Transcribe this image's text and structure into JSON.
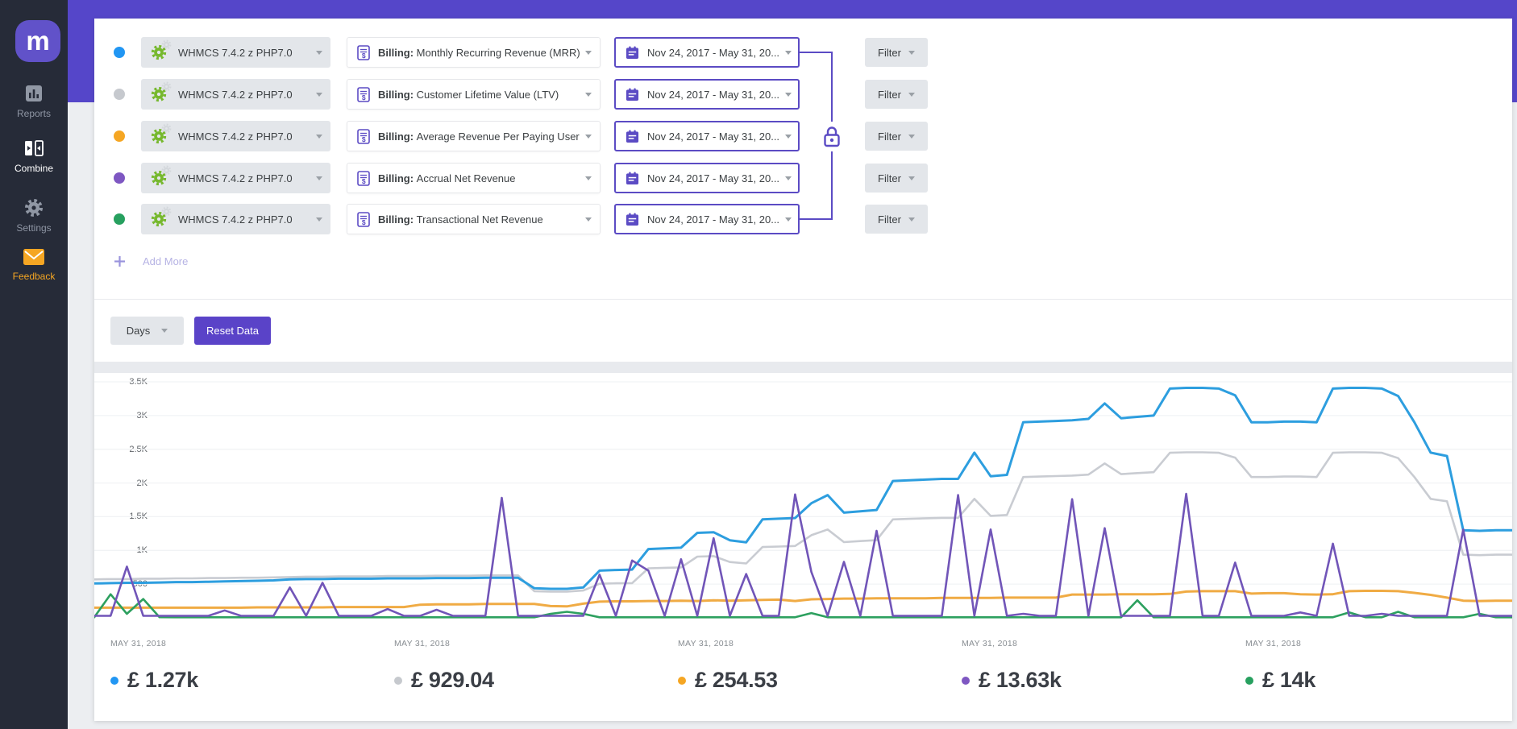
{
  "theme": {
    "accent": "#5b4bc4",
    "band": "#5546c9",
    "sidebar": "#262b38",
    "logo": "#6152c9",
    "reset": "#5a43c8",
    "control": "#e3e6ea",
    "page": "#eceef1",
    "soft": "#b6b3e4"
  },
  "sidebar": {
    "logo": "m",
    "items": [
      {
        "label": "Reports",
        "icon": "bar-chart",
        "state": "default"
      },
      {
        "label": "Combine",
        "icon": "combine",
        "state": "active"
      },
      {
        "label": "Settings",
        "icon": "gear",
        "state": "default"
      },
      {
        "label": "Feedback",
        "icon": "envelope",
        "state": "accent"
      }
    ]
  },
  "rows": [
    {
      "dot_color": "#2196f3",
      "source_label": "WHMCS 7.4.2 z PHP7.0",
      "metric_bold": "Billing:",
      "metric_label": "Monthly Recurring Revenue (MRR)",
      "date_label": "Nov 24, 2017 - May 31, 20...",
      "filter_label": "Filter"
    },
    {
      "dot_color": "#c6c9ce",
      "source_label": "WHMCS 7.4.2 z PHP7.0",
      "metric_bold": "Billing:",
      "metric_label": "Customer Lifetime Value (LTV)",
      "date_label": "Nov 24, 2017 - May 31, 20...",
      "filter_label": "Filter"
    },
    {
      "dot_color": "#f5a623",
      "source_label": "WHMCS 7.4.2 z PHP7.0",
      "metric_bold": "Billing:",
      "metric_label": "Average Revenue Per Paying User",
      "date_label": "Nov 24, 2017 - May 31, 20...",
      "filter_label": "Filter"
    },
    {
      "dot_color": "#7e57c2",
      "source_label": "WHMCS 7.4.2 z PHP7.0",
      "metric_bold": "Billing:",
      "metric_label": "Accrual Net Revenue",
      "date_label": "Nov 24, 2017 - May 31, 20...",
      "filter_label": "Filter"
    },
    {
      "dot_color": "#27a05f",
      "source_label": "WHMCS 7.4.2 z PHP7.0",
      "metric_bold": "Billing:",
      "metric_label": "Transactional Net Revenue",
      "date_label": "Nov 24, 2017 - May 31, 20...",
      "filter_label": "Filter"
    }
  ],
  "add_more": "Add More",
  "toolbar": {
    "interval": "Days",
    "reset": "Reset Data"
  },
  "chart_data": {
    "type": "line",
    "title": "",
    "xlabel": "",
    "ylabel": "",
    "ylim": [
      0,
      3500
    ],
    "grid": true,
    "legend_position": "none",
    "yticks": [
      {
        "label": "3.5K",
        "value": 3500
      },
      {
        "label": "3K",
        "value": 3000
      },
      {
        "label": "2.5K",
        "value": 2500
      },
      {
        "label": "2K",
        "value": 2000
      },
      {
        "label": "1.5K",
        "value": 1500
      },
      {
        "label": "1K",
        "value": 1000
      },
      {
        "label": "500",
        "value": 500
      }
    ],
    "x_axis_labels": [
      "MAY 31, 2018",
      "MAY 31, 2018",
      "MAY 31, 2018",
      "MAY 31, 2018",
      "MAY 31, 2018"
    ],
    "series": [
      {
        "name": "Billing: Monthly Recurring Revenue (MRR)",
        "color": "#2d9edf",
        "values": [
          510,
          515,
          520,
          520,
          525,
          530,
          530,
          535,
          540,
          545,
          550,
          555,
          570,
          575,
          575,
          580,
          580,
          580,
          585,
          585,
          585,
          590,
          590,
          590,
          595,
          595,
          595,
          440,
          430,
          430,
          450,
          700,
          710,
          715,
          1020,
          1030,
          1040,
          1260,
          1270,
          1150,
          1120,
          1460,
          1470,
          1480,
          1700,
          1820,
          1560,
          1580,
          1600,
          2030,
          2040,
          2050,
          2060,
          2060,
          2450,
          2100,
          2120,
          2900,
          2910,
          2920,
          2930,
          2950,
          3180,
          2960,
          2980,
          3000,
          3400,
          3410,
          3410,
          3400,
          3300,
          2900,
          2900,
          2910,
          2910,
          2900,
          3400,
          3410,
          3410,
          3400,
          3290,
          2900,
          2450,
          2400,
          1300,
          1290,
          1300,
          1300
        ]
      },
      {
        "name": "Billing: Customer Lifetime Value (LTV)",
        "color": "#c9ccd2",
        "values": [
          570,
          575,
          575,
          580,
          580,
          585,
          585,
          590,
          590,
          595,
          595,
          600,
          605,
          610,
          610,
          615,
          615,
          615,
          620,
          620,
          620,
          625,
          625,
          625,
          630,
          630,
          630,
          395,
          390,
          390,
          405,
          505,
          512,
          515,
          735,
          742,
          748,
          908,
          915,
          828,
          806,
          1050,
          1057,
          1065,
          1225,
          1310,
          1123,
          1138,
          1152,
          1460,
          1468,
          1476,
          1483,
          1483,
          1764,
          1512,
          1526,
          2088,
          2095,
          2102,
          2110,
          2124,
          2290,
          2131,
          2146,
          2160,
          2448,
          2455,
          2455,
          2448,
          2376,
          2088,
          2088,
          2095,
          2095,
          2088,
          2448,
          2455,
          2455,
          2448,
          2369,
          2088,
          1764,
          1728,
          936,
          929,
          936,
          936
        ]
      },
      {
        "name": "Billing: Average Revenue Per Paying User",
        "color": "#f0ab44",
        "values": [
          150,
          150,
          150,
          150,
          150,
          150,
          150,
          150,
          150,
          150,
          155,
          155,
          155,
          155,
          155,
          160,
          160,
          160,
          160,
          160,
          195,
          200,
          200,
          200,
          205,
          205,
          205,
          205,
          175,
          170,
          210,
          240,
          245,
          245,
          250,
          250,
          255,
          250,
          260,
          255,
          260,
          265,
          270,
          250,
          275,
          280,
          285,
          285,
          290,
          290,
          290,
          290,
          295,
          295,
          295,
          295,
          300,
          300,
          300,
          300,
          345,
          345,
          345,
          350,
          350,
          350,
          355,
          390,
          395,
          395,
          395,
          360,
          365,
          365,
          350,
          345,
          350,
          395,
          400,
          400,
          395,
          370,
          340,
          300,
          255,
          250,
          255,
          255
        ]
      },
      {
        "name": "Billing: Accrual Net Revenue",
        "color": "#7155b8",
        "values": [
          30,
          30,
          760,
          30,
          30,
          30,
          30,
          30,
          110,
          30,
          30,
          30,
          450,
          30,
          520,
          30,
          30,
          30,
          130,
          30,
          30,
          120,
          30,
          30,
          30,
          1780,
          30,
          30,
          30,
          30,
          30,
          640,
          30,
          850,
          700,
          30,
          870,
          30,
          1180,
          30,
          650,
          30,
          30,
          1830,
          680,
          30,
          830,
          30,
          1290,
          30,
          30,
          30,
          30,
          1820,
          30,
          1310,
          30,
          60,
          30,
          30,
          1760,
          30,
          1330,
          30,
          30,
          30,
          30,
          1840,
          30,
          30,
          820,
          30,
          30,
          30,
          80,
          30,
          1100,
          30,
          30,
          60,
          30,
          30,
          30,
          30,
          1310,
          30,
          30,
          30
        ]
      },
      {
        "name": "Billing: Transactional Net Revenue",
        "color": "#2da05f",
        "values": [
          10,
          350,
          60,
          280,
          10,
          8,
          8,
          8,
          8,
          8,
          8,
          8,
          8,
          8,
          8,
          8,
          8,
          8,
          8,
          8,
          8,
          8,
          8,
          8,
          8,
          8,
          8,
          8,
          60,
          90,
          60,
          8,
          8,
          8,
          8,
          8,
          8,
          8,
          8,
          8,
          8,
          8,
          8,
          8,
          70,
          8,
          8,
          8,
          8,
          8,
          8,
          8,
          8,
          8,
          8,
          8,
          8,
          8,
          8,
          8,
          8,
          8,
          8,
          8,
          260,
          8,
          8,
          8,
          8,
          8,
          8,
          8,
          8,
          8,
          8,
          8,
          8,
          80,
          8,
          8,
          90,
          8,
          8,
          8,
          8,
          60,
          8,
          8
        ]
      }
    ]
  },
  "footer": {
    "columns": [
      {
        "date": "MAY 31, 2018",
        "value": "£ 1.27k",
        "color": "#2196f3"
      },
      {
        "date": "MAY 31, 2018",
        "value": "£ 929.04",
        "color": "#c6c9ce"
      },
      {
        "date": "MAY 31, 2018",
        "value": "£ 254.53",
        "color": "#f5a623"
      },
      {
        "date": "MAY 31, 2018",
        "value": "£ 13.63k",
        "color": "#7e57c2"
      },
      {
        "date": "MAY 31, 2018",
        "value": "£ 14k",
        "color": "#27a05f"
      }
    ]
  }
}
